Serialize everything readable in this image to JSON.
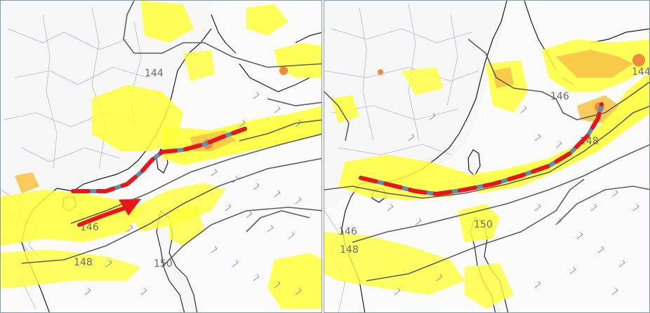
{
  "colors": {
    "background": "#fbfbfb",
    "land_fill": "#f7f7f7",
    "border_lines": "#b9bcc6",
    "coastline": "#1a1a1a",
    "contour": "#5e5e5e",
    "precip_light": "#ffff3a",
    "precip_mid": "#f7c548",
    "precip_heavy": "#ef8a3a",
    "wind_barb": "#8d8fb0",
    "trough_red": "#e8161b",
    "trough_blue": "#5b8fb3",
    "flow_arrow": "#e8161b",
    "panel_border": "#8a9aa3"
  },
  "left_panel": {
    "contour_labels": [
      "144",
      "146",
      "148",
      "150"
    ],
    "annotations": [
      "red-blue-dashed-front-line",
      "red-curved-flow-arrow"
    ]
  },
  "right_panel": {
    "contour_labels": [
      "146",
      "144",
      "148",
      "146",
      "148",
      "150"
    ],
    "annotations": [
      "red-blue-dashed-front-line"
    ]
  }
}
